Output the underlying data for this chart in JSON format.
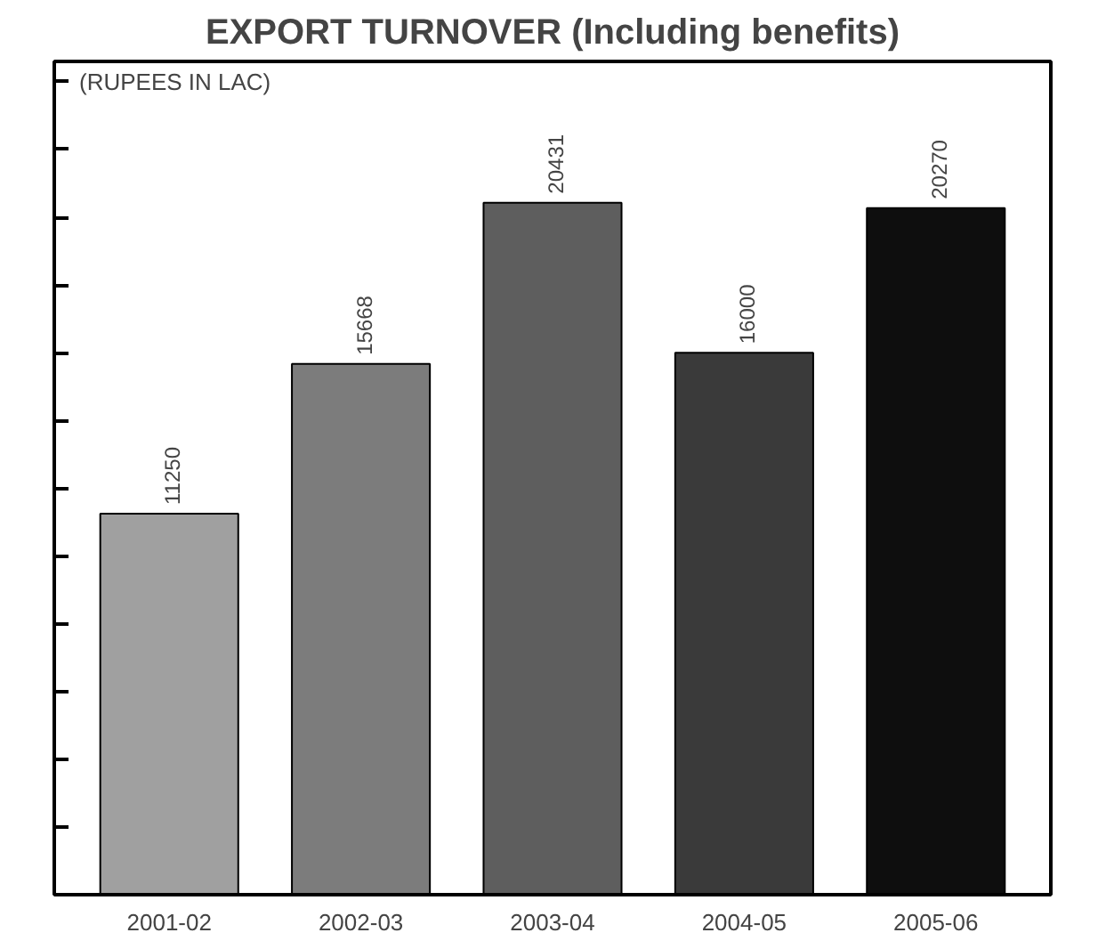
{
  "chart_data": {
    "type": "bar",
    "title": "EXPORT TURNOVER (Including benefits)",
    "annotations": [
      "(RUPEES IN LAC)"
    ],
    "categories": [
      "2001-02",
      "2002-03",
      "2003-04",
      "2004-05",
      "2005-06"
    ],
    "values": [
      11250,
      15668,
      20431,
      16000,
      20270
    ],
    "colors": [
      "#a0a0a0",
      "#7c7c7c",
      "#5e5e5e",
      "#3a3a3a",
      "#0e0e0e"
    ],
    "data_labels": true,
    "ylim": [
      0,
      24600
    ],
    "yticks": [
      {
        "value": 2000,
        "label": null
      },
      {
        "value": 4000,
        "label": null
      },
      {
        "value": 6000,
        "label": null
      },
      {
        "value": 8000,
        "label": null
      },
      {
        "value": 10000,
        "label": null
      },
      {
        "value": 12000,
        "label": null
      },
      {
        "value": 14000,
        "label": null
      },
      {
        "value": 16000,
        "label": null
      },
      {
        "value": 18000,
        "label": null
      },
      {
        "value": 20000,
        "label": null
      },
      {
        "value": 22000,
        "label": null
      },
      {
        "value": 24000,
        "label": null
      }
    ],
    "grid": false
  }
}
